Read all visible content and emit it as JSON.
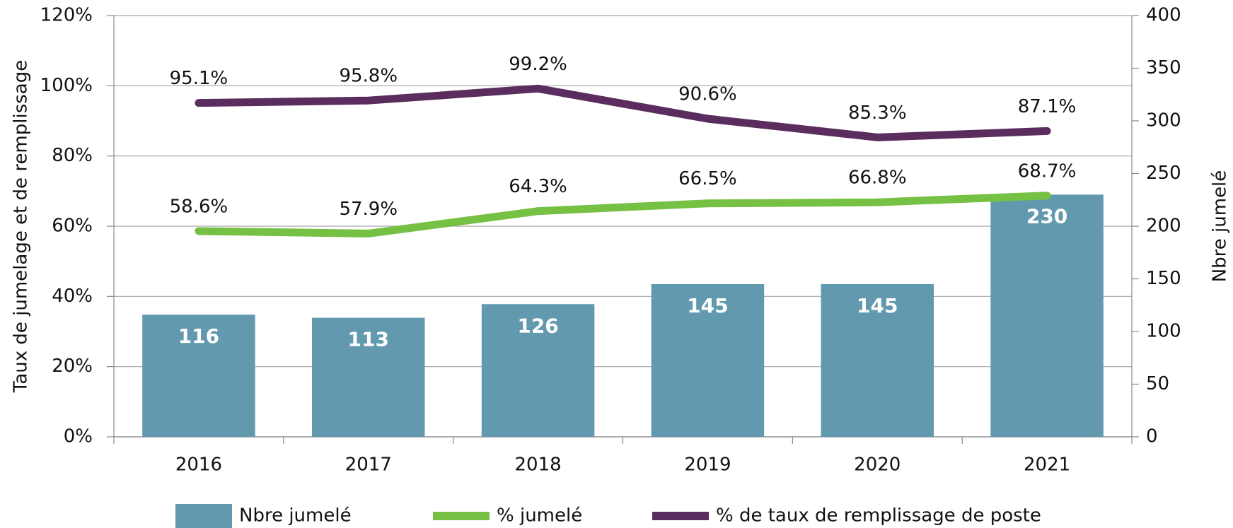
{
  "chart_data": {
    "type": "bar",
    "categories": [
      "2016",
      "2017",
      "2018",
      "2019",
      "2020",
      "2021"
    ],
    "series": [
      {
        "name": "Nbre jumelé",
        "type": "bar",
        "axis": "y2",
        "color": "#6399ae",
        "values": [
          116,
          113,
          126,
          145,
          145,
          230
        ]
      },
      {
        "name": "% jumelé",
        "type": "line",
        "axis": "y",
        "color": "#76c043",
        "values": [
          58.6,
          57.9,
          64.3,
          66.5,
          66.8,
          68.7
        ],
        "value_labels": [
          "58.6%",
          "57.9%",
          "64.3%",
          "66.5%",
          "66.8%",
          "68.7%"
        ]
      },
      {
        "name": "% de taux de remplissage de poste",
        "type": "line",
        "axis": "y",
        "color": "#5a2d5e",
        "values": [
          95.1,
          95.8,
          99.2,
          90.6,
          85.3,
          87.1
        ],
        "value_labels": [
          "95.1%",
          "95.8%",
          "99.2%",
          "90.6%",
          "85.3%",
          "87.1%"
        ]
      }
    ],
    "y_label": "Taux de jumelage et de remplissage",
    "y2_label": "Nbre jumelé",
    "ylim": [
      0,
      120
    ],
    "yticks": [
      {
        "value": 0,
        "label": "0%"
      },
      {
        "value": 20,
        "label": "20%"
      },
      {
        "value": 40,
        "label": "40%"
      },
      {
        "value": 60,
        "label": "60%"
      },
      {
        "value": 80,
        "label": "80%"
      },
      {
        "value": 100,
        "label": "100%"
      },
      {
        "value": 120,
        "label": "120%"
      }
    ],
    "y2lim": [
      0,
      400
    ],
    "y2ticks": [
      0,
      50,
      100,
      150,
      200,
      250,
      300,
      350,
      400
    ],
    "grid": true,
    "legend": "bottom"
  }
}
